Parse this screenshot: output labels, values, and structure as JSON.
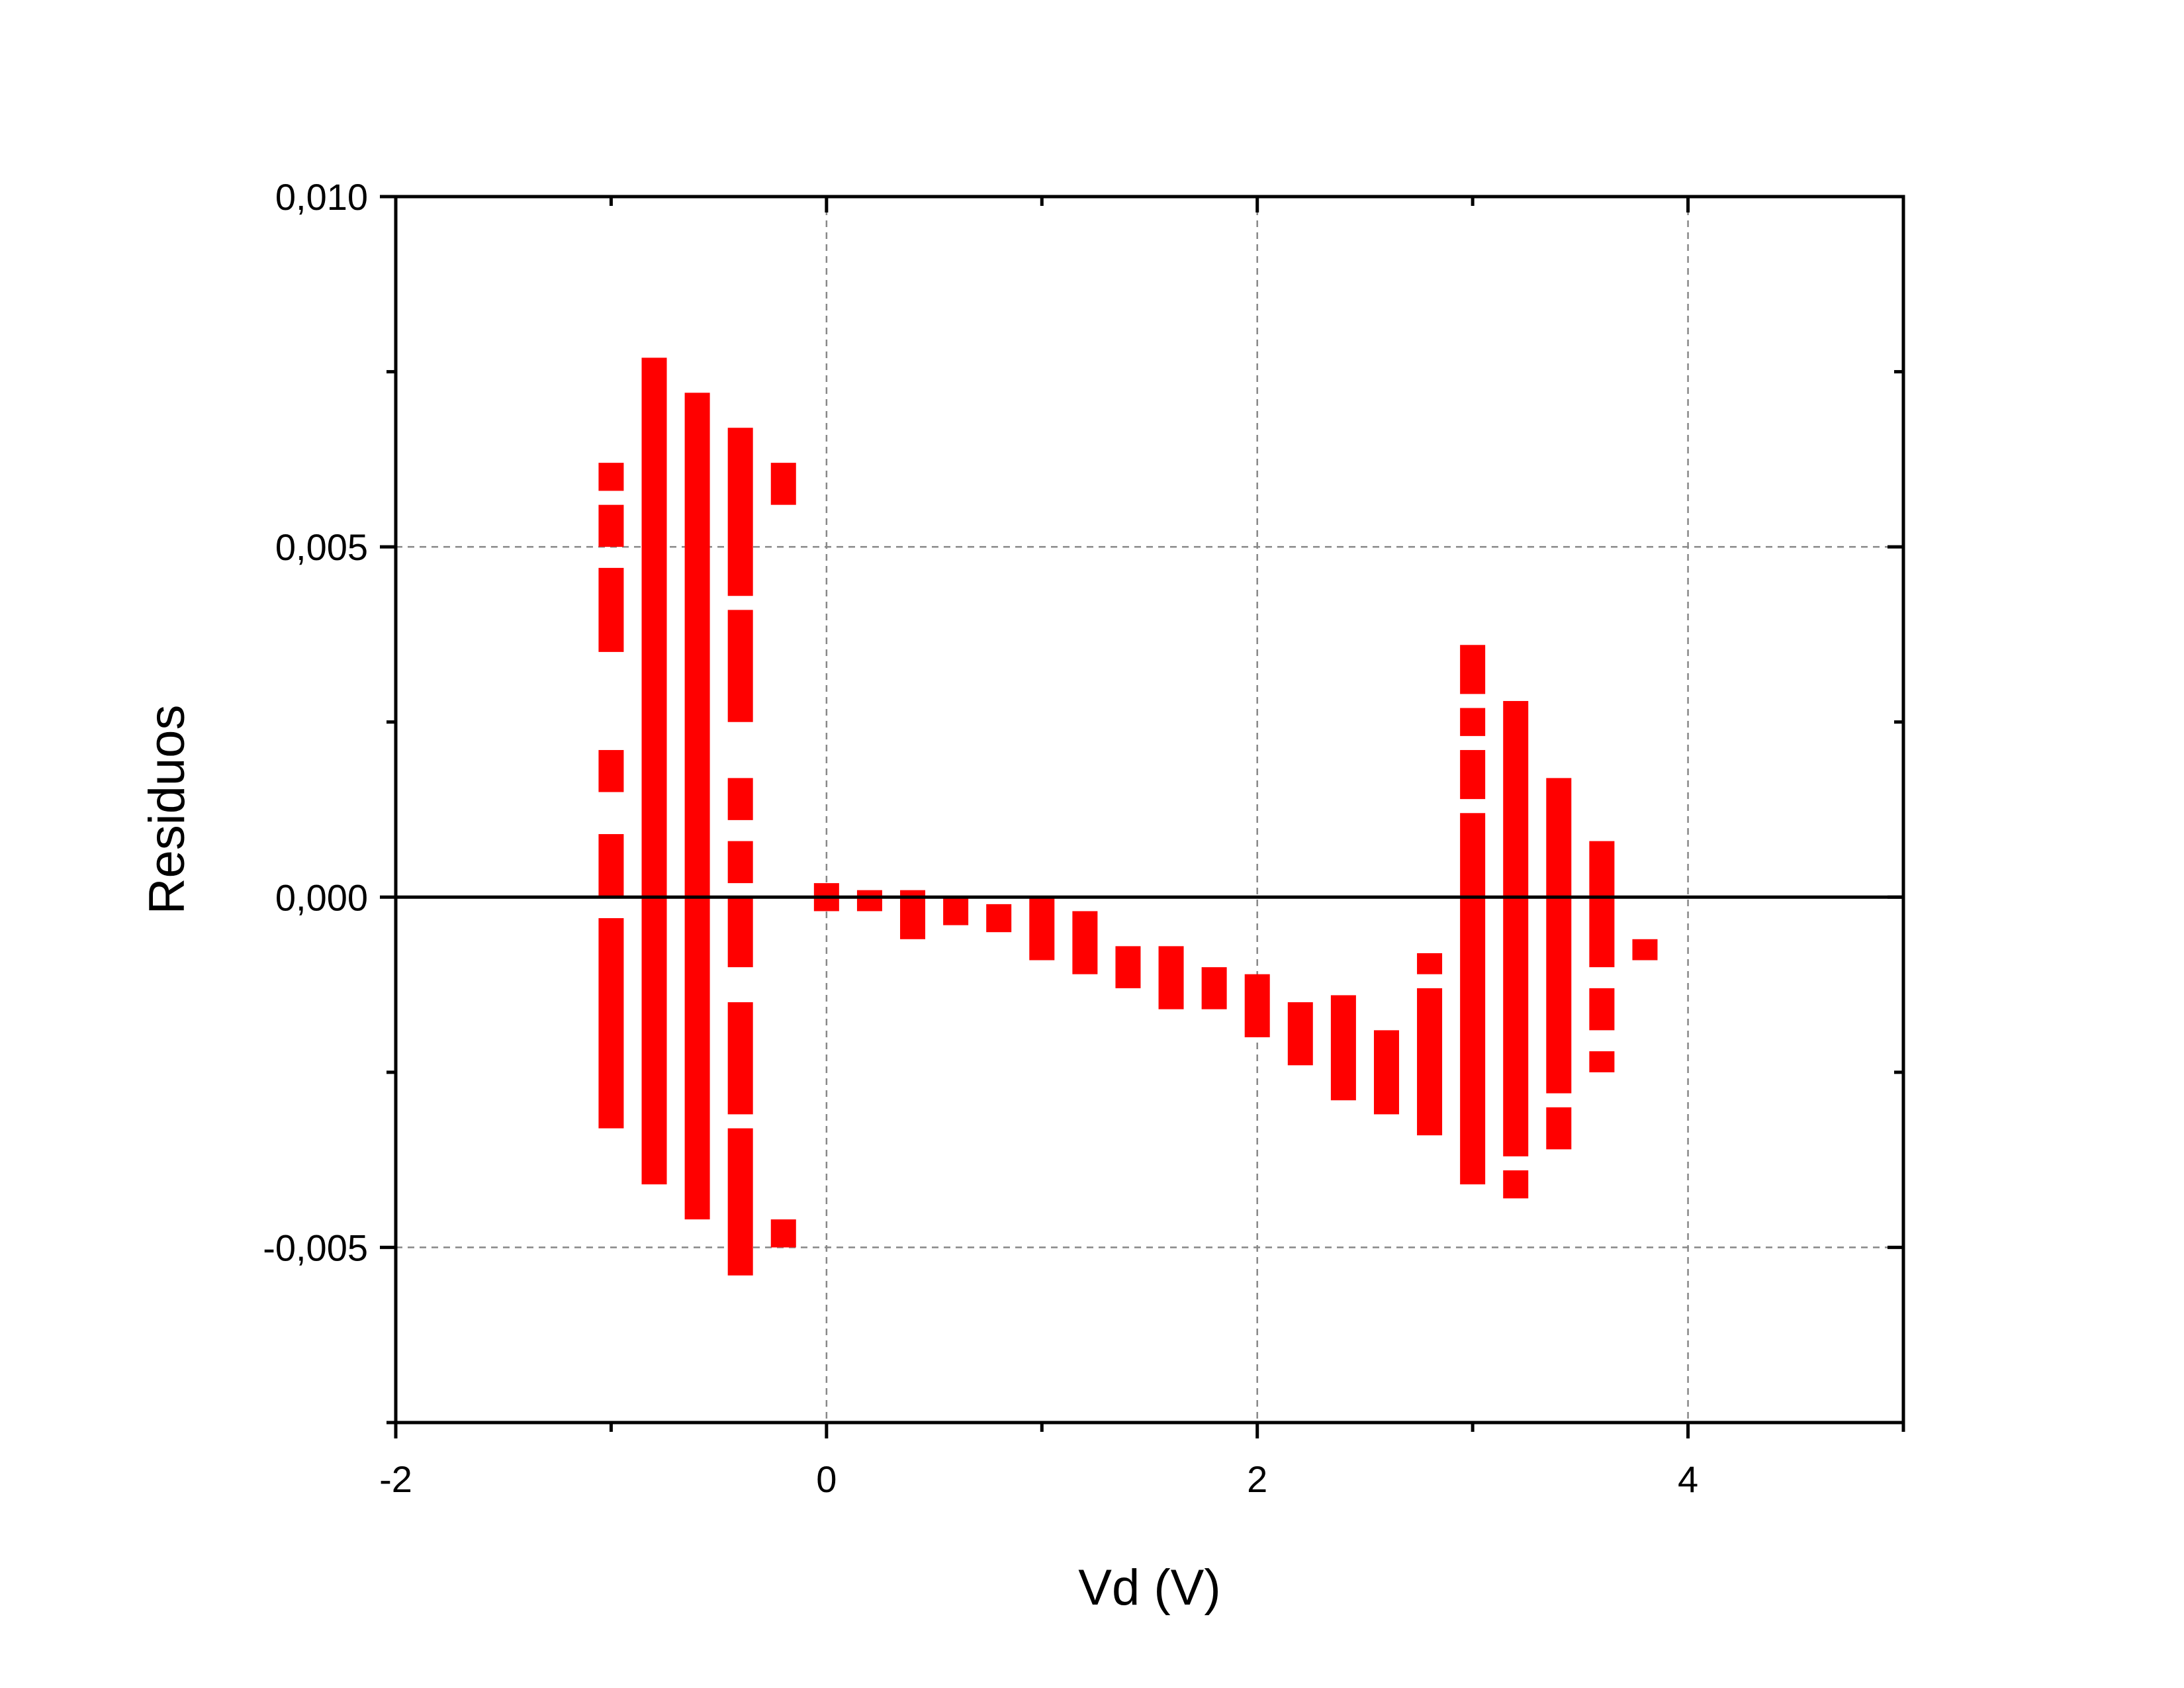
{
  "chart_data": {
    "type": "bar",
    "title": "",
    "xlabel": "Vd (V)",
    "ylabel": "Residuos",
    "xlim": [
      -2,
      5
    ],
    "ylim": [
      -0.0075,
      0.01
    ],
    "x_ticks": [
      {
        "value": -2,
        "label": "-2"
      },
      {
        "value": 0,
        "label": "0"
      },
      {
        "value": 2,
        "label": "2"
      },
      {
        "value": 4,
        "label": "4"
      }
    ],
    "y_ticks": [
      {
        "value": 0.01,
        "label": "0,010"
      },
      {
        "value": 0.005,
        "label": "0,005"
      },
      {
        "value": 0.0,
        "label": "0,000"
      },
      {
        "value": -0.005,
        "label": "-0,005"
      }
    ],
    "x_minor_ticks": [
      -1,
      1,
      3,
      5
    ],
    "y_minor_ticks": [
      0.0075,
      0.0025,
      -0.0025,
      -0.0075
    ],
    "grid": true,
    "zero_line": true,
    "bar_color": "#ff0000",
    "bars": [
      {
        "x": -1.0,
        "segments": [
          [
            0.0062,
            0.0058
          ],
          [
            0.0056,
            0.005
          ],
          [
            0.0047,
            0.0035
          ],
          [
            0.0021,
            0.0015
          ],
          [
            0.0009,
            0.0
          ],
          [
            -0.0003,
            -0.0033
          ]
        ]
      },
      {
        "x": -0.8,
        "segments": [
          [
            0.0077,
            -0.0041
          ]
        ]
      },
      {
        "x": -0.6,
        "segments": [
          [
            0.0072,
            -0.0046
          ]
        ]
      },
      {
        "x": -0.4,
        "segments": [
          [
            0.0067,
            0.0043
          ],
          [
            0.0041,
            0.0025
          ],
          [
            0.0017,
            0.0011
          ],
          [
            0.0008,
            0.0002
          ],
          [
            0.0,
            -0.001
          ],
          [
            -0.0015,
            -0.0031
          ],
          [
            -0.0033,
            -0.0054
          ]
        ]
      },
      {
        "x": -0.2,
        "segments": [
          [
            0.0062,
            0.0056
          ],
          [
            -0.0046,
            -0.005
          ]
        ]
      },
      {
        "x": 0.0,
        "segments": [
          [
            0.0002,
            -0.0002
          ]
        ]
      },
      {
        "x": 0.2,
        "segments": [
          [
            0.0001,
            -0.0002
          ]
        ]
      },
      {
        "x": 0.4,
        "segments": [
          [
            0.0001,
            -0.0006
          ]
        ]
      },
      {
        "x": 0.6,
        "segments": [
          [
            0.0,
            -0.0004
          ]
        ]
      },
      {
        "x": 0.8,
        "segments": [
          [
            -0.0001,
            -0.0005
          ]
        ]
      },
      {
        "x": 1.0,
        "segments": [
          [
            0.0,
            -0.0009
          ]
        ]
      },
      {
        "x": 1.2,
        "segments": [
          [
            -0.0002,
            -0.0011
          ]
        ]
      },
      {
        "x": 1.4,
        "segments": [
          [
            -0.0007,
            -0.0013
          ]
        ]
      },
      {
        "x": 1.6,
        "segments": [
          [
            -0.0007,
            -0.0016
          ]
        ]
      },
      {
        "x": 1.8,
        "segments": [
          [
            -0.001,
            -0.0016
          ]
        ]
      },
      {
        "x": 2.0,
        "segments": [
          [
            -0.0011,
            -0.002
          ]
        ]
      },
      {
        "x": 2.2,
        "segments": [
          [
            -0.0015,
            -0.0024
          ]
        ]
      },
      {
        "x": 2.4,
        "segments": [
          [
            -0.0014,
            -0.0029
          ]
        ]
      },
      {
        "x": 2.6,
        "segments": [
          [
            -0.0019,
            -0.0031
          ]
        ]
      },
      {
        "x": 2.8,
        "segments": [
          [
            -0.0008,
            -0.0011
          ],
          [
            -0.0013,
            -0.0034
          ]
        ]
      },
      {
        "x": 3.0,
        "segments": [
          [
            0.0036,
            0.0029
          ],
          [
            0.0027,
            0.0023
          ],
          [
            0.0021,
            0.0014
          ],
          [
            0.0012,
            -0.0041
          ]
        ]
      },
      {
        "x": 3.2,
        "segments": [
          [
            0.0028,
            -0.0037
          ],
          [
            -0.0039,
            -0.0043
          ]
        ]
      },
      {
        "x": 3.4,
        "segments": [
          [
            0.0017,
            -0.0028
          ],
          [
            -0.003,
            -0.0036
          ]
        ]
      },
      {
        "x": 3.6,
        "segments": [
          [
            0.0008,
            -0.001
          ],
          [
            -0.0013,
            -0.0019
          ],
          [
            -0.0022,
            -0.0025
          ]
        ]
      },
      {
        "x": 3.8,
        "segments": [
          [
            -0.0006,
            -0.0009
          ]
        ]
      }
    ]
  }
}
